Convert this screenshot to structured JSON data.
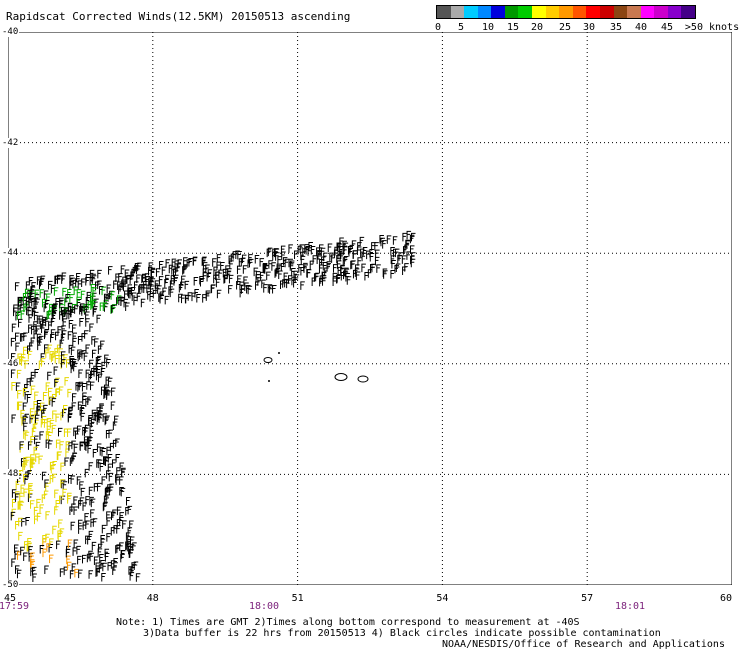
{
  "title": "Rapidscat Corrected Winds(12.5KM) 20150513 ascending",
  "colorbar": {
    "colors": [
      "#555555",
      "#aaaaaa",
      "#00ccff",
      "#0088ff",
      "#0000dd",
      "#009900",
      "#00cc00",
      "#ffff00",
      "#ffcc00",
      "#ff9900",
      "#ff5500",
      "#ff0000",
      "#cc0000",
      "#8b4513",
      "#c87850",
      "#ff00ff",
      "#cc00cc",
      "#8800cc",
      "#440088"
    ],
    "labels": [
      "0",
      "5",
      "10",
      "15",
      "20",
      "25",
      "30",
      "35",
      "40",
      "45",
      ">50 knots"
    ]
  },
  "lat_labels": [
    "-40",
    "-42",
    "-44",
    "-46",
    "-48",
    "-50"
  ],
  "lon_labels": [
    "45",
    "48",
    "51",
    "54",
    "57",
    "60"
  ],
  "times": [
    "17:59",
    "18:00",
    "18:01"
  ],
  "notes": [
    "Note: 1) Times are GMT 2)Times along bottom correspond to measurement at -40S",
    "3)Data buffer is 22 hrs from 20150513 4) Black circles indicate possible contamination",
    "NOAA/NESDIS/Office of Research and Applications"
  ],
  "chart_data": {
    "type": "scatter",
    "title": "Rapidscat Corrected Winds(12.5KM) 20150513 ascending",
    "xlim": [
      45,
      60
    ],
    "ylim": [
      -50,
      -40
    ],
    "x_ticks": [
      45,
      48,
      51,
      54,
      57,
      60
    ],
    "y_ticks": [
      -40,
      -42,
      -44,
      -46,
      -48,
      -50
    ],
    "grid": true,
    "legend": "colorbar top-right",
    "swath_description": "wind barbs along an ascending swath",
    "speed_bins_knots": [
      0,
      5,
      10,
      15,
      20,
      25,
      30,
      35,
      40,
      45,
      50
    ]
  }
}
